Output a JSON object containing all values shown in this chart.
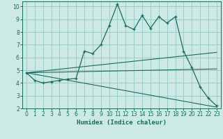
{
  "xlabel": "Humidex (Indice chaleur)",
  "xlim": [
    -0.5,
    23.5
  ],
  "ylim": [
    2,
    10.4
  ],
  "yticks": [
    2,
    3,
    4,
    5,
    6,
    7,
    8,
    9,
    10
  ],
  "xticks": [
    0,
    1,
    2,
    3,
    4,
    5,
    6,
    7,
    8,
    9,
    10,
    11,
    12,
    13,
    14,
    15,
    16,
    17,
    18,
    19,
    20,
    21,
    22,
    23
  ],
  "bg_color": "#cce9e5",
  "grid_color": "#9ecbc6",
  "line_color": "#1a6b5a",
  "main_x": [
    0,
    1,
    2,
    3,
    4,
    5,
    6,
    7,
    8,
    9,
    10,
    11,
    12,
    13,
    14,
    15,
    16,
    17,
    18,
    19,
    20,
    21,
    22,
    23
  ],
  "main_y": [
    4.8,
    4.2,
    4.0,
    4.1,
    4.2,
    4.3,
    4.35,
    6.5,
    6.3,
    7.0,
    8.5,
    10.2,
    8.5,
    8.2,
    9.3,
    8.3,
    9.2,
    8.7,
    9.2,
    6.5,
    5.2,
    3.7,
    2.8,
    2.2
  ],
  "line1_x": [
    0,
    23
  ],
  "line1_y": [
    4.8,
    6.4
  ],
  "line2_x": [
    0,
    23
  ],
  "line2_y": [
    4.8,
    5.1
  ],
  "line3_x": [
    0,
    23
  ],
  "line3_y": [
    4.8,
    2.1
  ]
}
